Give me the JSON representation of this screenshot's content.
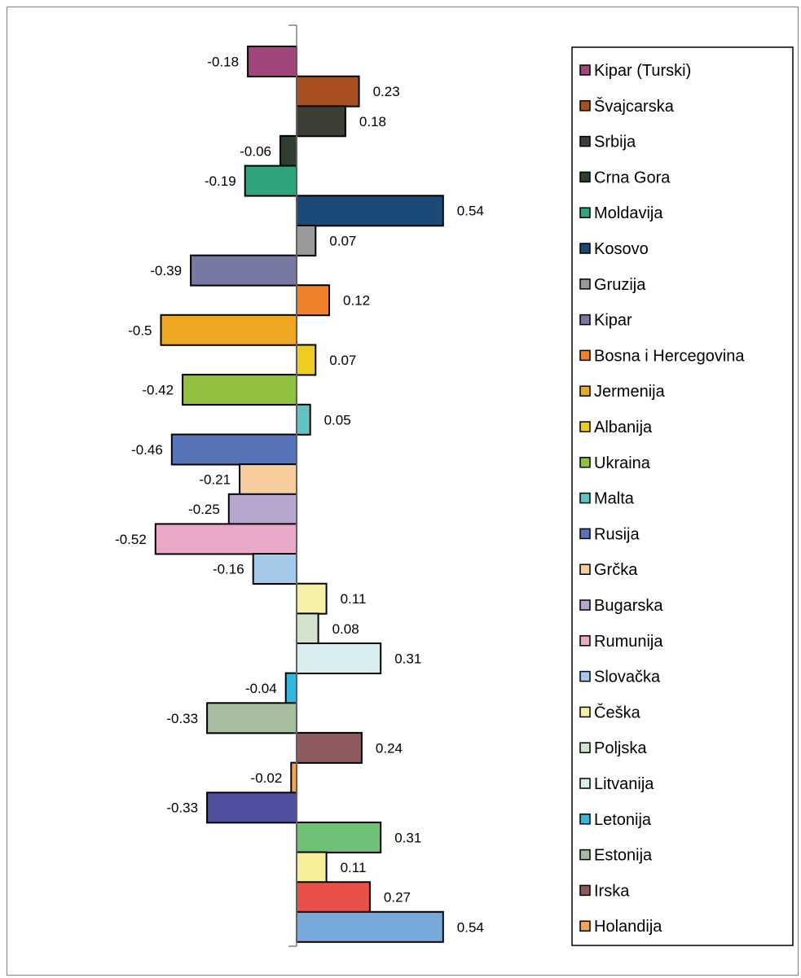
{
  "chart_data": {
    "type": "bar",
    "orientation": "horizontal",
    "title": "",
    "xlabel": "",
    "ylabel": "",
    "xlim": [
      -0.52,
      0.54
    ],
    "grid": false,
    "legend": "right",
    "bars": [
      {
        "label": "Kipar (Turski)",
        "value": -0.18,
        "value_label": "-0.18",
        "color": "#a0467a"
      },
      {
        "label": "Švajcarska",
        "value": 0.23,
        "value_label": "0.23",
        "color": "#a8501f"
      },
      {
        "label": "Srbija",
        "value": 0.18,
        "value_label": "0.18",
        "color": "#3e3e36"
      },
      {
        "label": "Crna Gora",
        "value": -0.06,
        "value_label": "-0.06",
        "color": "#2e3e30"
      },
      {
        "label": "Moldavija",
        "value": -0.19,
        "value_label": "-0.19",
        "color": "#2fa57c"
      },
      {
        "label": "Kosovo",
        "value": 0.54,
        "value_label": "0.54",
        "color": "#1c4a78"
      },
      {
        "label": "Gruzija",
        "value": 0.07,
        "value_label": "0.07",
        "color": "#999999"
      },
      {
        "label": "Kipar",
        "value": -0.39,
        "value_label": "-0.39",
        "color": "#7779a3"
      },
      {
        "label": "Bosna i Hercegovina",
        "value": 0.12,
        "value_label": "0.12",
        "color": "#ee8129"
      },
      {
        "label": "Jermenija",
        "value": -0.5,
        "value_label": "-0.5",
        "color": "#eea824"
      },
      {
        "label": "Albanija",
        "value": 0.07,
        "value_label": "0.07",
        "color": "#eecd1f"
      },
      {
        "label": "Ukraina",
        "value": -0.42,
        "value_label": "-0.42",
        "color": "#92c140"
      },
      {
        "label": "Malta",
        "value": 0.05,
        "value_label": "0.05",
        "color": "#5fc4c2"
      },
      {
        "label": "Rusija",
        "value": -0.46,
        "value_label": "-0.46",
        "color": "#5874b8"
      },
      {
        "label": "Grčka",
        "value": -0.21,
        "value_label": "-0.21",
        "color": "#f7cc9d"
      },
      {
        "label": "Bugarska",
        "value": -0.25,
        "value_label": "-0.25",
        "color": "#b7a7cf"
      },
      {
        "label": "Rumunija",
        "value": -0.52,
        "value_label": "-0.52",
        "color": "#e8a9c9"
      },
      {
        "label": "Slovačka",
        "value": -0.16,
        "value_label": "-0.16",
        "color": "#a4c9e9"
      },
      {
        "label": "Češka",
        "value": 0.11,
        "value_label": "0.11",
        "color": "#f5f1a4"
      },
      {
        "label": "Poljska",
        "value": 0.08,
        "value_label": "0.08",
        "color": "#d2e4cc"
      },
      {
        "label": "Litvanija",
        "value": 0.31,
        "value_label": "0.31",
        "color": "#d8edf0"
      },
      {
        "label": "Letonija",
        "value": -0.04,
        "value_label": "-0.04",
        "color": "#36b6df"
      },
      {
        "label": "Estonija",
        "value": -0.33,
        "value_label": "-0.33",
        "color": "#a6bd9f"
      },
      {
        "label": "Irska",
        "value": 0.24,
        "value_label": "0.24",
        "color": "#8e5a5e"
      },
      {
        "label": "Holandija",
        "value": -0.02,
        "value_label": "-0.02",
        "color": "#f4a35a"
      },
      {
        "label": "",
        "value": -0.33,
        "value_label": "-0.33",
        "color": "#5050a2"
      },
      {
        "label": "",
        "value": 0.31,
        "value_label": "0.31",
        "color": "#6fc175"
      },
      {
        "label": "",
        "value": 0.11,
        "value_label": "0.11",
        "color": "#f5ef99"
      },
      {
        "label": "",
        "value": 0.27,
        "value_label": "0.27",
        "color": "#e8504a"
      },
      {
        "label": "",
        "value": 0.54,
        "value_label": "0.54",
        "color": "#77a9da"
      }
    ]
  }
}
